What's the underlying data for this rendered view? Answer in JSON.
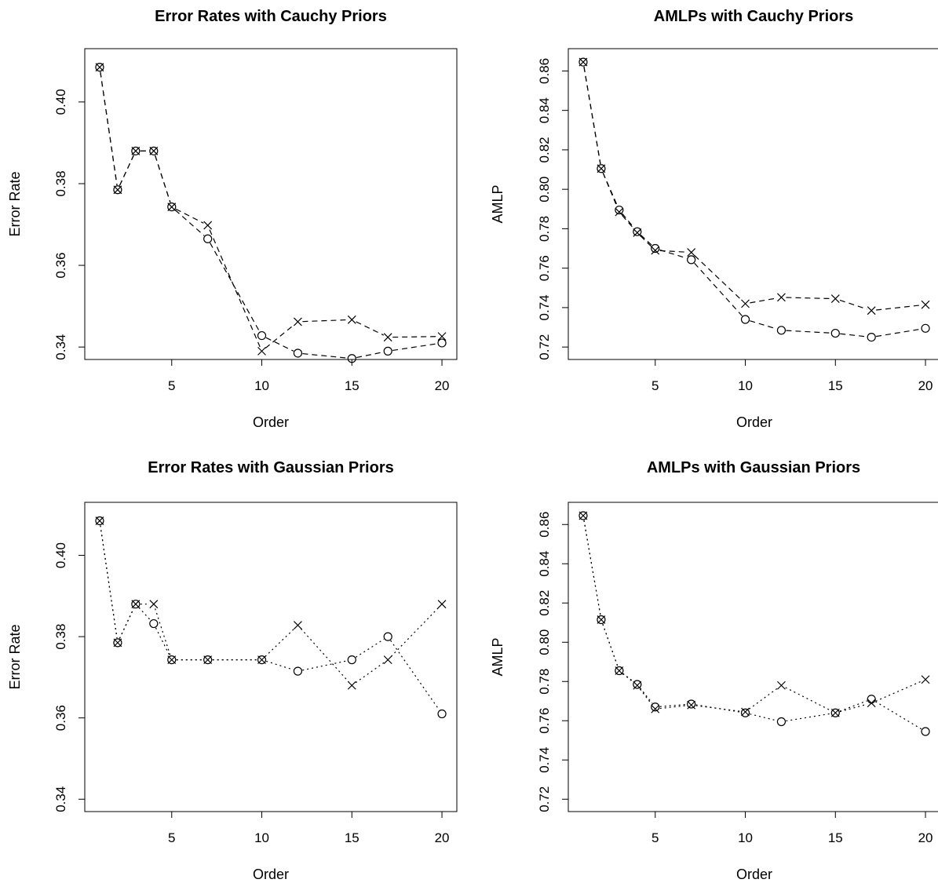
{
  "chart_data": [
    {
      "type": "line",
      "title": "Error Rates with Cauchy Priors",
      "xlabel": "Order",
      "ylabel": "Error Rate",
      "xlim": [
        1,
        20
      ],
      "ylim": [
        0.34,
        0.41
      ],
      "xticks": [
        5,
        10,
        15,
        20
      ],
      "yticks": [
        0.34,
        0.36,
        0.38,
        0.4
      ],
      "x": [
        1,
        2,
        3,
        4,
        5,
        7,
        10,
        12,
        15,
        17,
        20
      ],
      "series": [
        {
          "marker": "x",
          "line": "dashed",
          "values": [
            0.4085,
            0.3785,
            0.388,
            0.388,
            0.3743,
            0.3698,
            0.339,
            0.3462,
            0.3467,
            0.3424,
            0.3426
          ]
        },
        {
          "marker": "o",
          "line": "dashed",
          "values": [
            0.4085,
            0.3785,
            0.388,
            0.388,
            0.3743,
            0.3665,
            0.3428,
            0.3385,
            0.3372,
            0.339,
            0.341
          ]
        }
      ]
    },
    {
      "type": "line",
      "title": "AMLPs with Cauchy Priors",
      "xlabel": "Order",
      "ylabel": "AMLP",
      "xlim": [
        1,
        20
      ],
      "ylim": [
        0.72,
        0.865
      ],
      "xticks": [
        5,
        10,
        15,
        20
      ],
      "yticks": [
        0.72,
        0.74,
        0.76,
        0.78,
        0.8,
        0.82,
        0.84,
        0.86
      ],
      "x": [
        1,
        2,
        3,
        4,
        5,
        7,
        10,
        12,
        15,
        17,
        20
      ],
      "series": [
        {
          "marker": "x",
          "line": "dashed",
          "values": [
            0.8645,
            0.8105,
            0.7885,
            0.778,
            0.769,
            0.768,
            0.742,
            0.7452,
            0.7445,
            0.7385,
            0.7415
          ]
        },
        {
          "marker": "o",
          "line": "dashed",
          "values": [
            0.8645,
            0.8105,
            0.7895,
            0.7785,
            0.77,
            0.7643,
            0.734,
            0.7285,
            0.727,
            0.725,
            0.7295
          ]
        }
      ]
    },
    {
      "type": "line",
      "title": "Error Rates with Gaussian Priors",
      "xlabel": "Order",
      "ylabel": "Error Rate",
      "xlim": [
        1,
        20
      ],
      "ylim": [
        0.34,
        0.41
      ],
      "xticks": [
        5,
        10,
        15,
        20
      ],
      "yticks": [
        0.34,
        0.36,
        0.38,
        0.4
      ],
      "x": [
        1,
        2,
        3,
        4,
        5,
        7,
        10,
        12,
        15,
        17,
        20
      ],
      "series": [
        {
          "marker": "x",
          "line": "dotted",
          "values": [
            0.4085,
            0.3785,
            0.388,
            0.388,
            0.3743,
            0.3743,
            0.3743,
            0.3828,
            0.368,
            0.3743,
            0.388
          ]
        },
        {
          "marker": "o",
          "line": "dotted",
          "values": [
            0.4085,
            0.3785,
            0.388,
            0.3832,
            0.3743,
            0.3743,
            0.3743,
            0.3715,
            0.3743,
            0.38,
            0.361
          ]
        }
      ]
    },
    {
      "type": "line",
      "title": "AMLPs with Gaussian Priors",
      "xlabel": "Order",
      "ylabel": "AMLP",
      "xlim": [
        1,
        20
      ],
      "ylim": [
        0.72,
        0.865
      ],
      "xticks": [
        5,
        10,
        15,
        20
      ],
      "yticks": [
        0.72,
        0.74,
        0.76,
        0.78,
        0.8,
        0.82,
        0.84,
        0.86
      ],
      "x": [
        1,
        2,
        3,
        4,
        5,
        7,
        10,
        12,
        15,
        17,
        20
      ],
      "series": [
        {
          "marker": "x",
          "line": "dotted",
          "values": [
            0.8645,
            0.8115,
            0.7855,
            0.778,
            0.766,
            0.768,
            0.7645,
            0.778,
            0.764,
            0.769,
            0.781
          ]
        },
        {
          "marker": "o",
          "line": "dotted",
          "values": [
            0.8645,
            0.8115,
            0.7855,
            0.7785,
            0.767,
            0.7685,
            0.764,
            0.7595,
            0.764,
            0.771,
            0.7545
          ]
        }
      ]
    }
  ]
}
